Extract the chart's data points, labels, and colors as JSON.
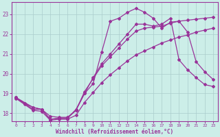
{
  "xlabel": "Windchill (Refroidissement éolien,°C)",
  "background_color": "#cceee8",
  "grid_color": "#aacccc",
  "line_color": "#993399",
  "xlim": [
    -0.5,
    23.5
  ],
  "ylim": [
    17.6,
    23.6
  ],
  "yticks": [
    18,
    19,
    20,
    21,
    22,
    23
  ],
  "xticks": [
    0,
    1,
    2,
    3,
    4,
    5,
    6,
    7,
    8,
    9,
    10,
    11,
    12,
    13,
    14,
    15,
    16,
    17,
    18,
    19,
    20,
    21,
    22,
    23
  ],
  "line1_x": [
    0,
    1,
    2,
    3,
    4,
    5,
    6,
    7,
    8,
    9,
    10,
    11,
    12,
    13,
    14,
    15,
    16,
    17,
    18,
    19,
    20,
    21,
    22,
    23
  ],
  "line1": [
    18.8,
    18.5,
    18.3,
    18.2,
    17.7,
    17.75,
    17.75,
    18.15,
    19.0,
    19.5,
    21.1,
    22.65,
    22.8,
    23.1,
    23.3,
    23.1,
    22.8,
    22.3,
    22.6,
    22.65,
    22.1,
    20.6,
    20.1,
    19.7
  ],
  "line2_x": [
    0,
    1,
    2,
    3,
    4,
    5,
    6,
    7,
    8,
    9,
    10,
    11,
    12,
    13,
    14,
    15,
    16,
    17,
    18,
    19,
    20,
    21,
    22,
    23
  ],
  "line2": [
    18.8,
    18.5,
    18.2,
    18.2,
    17.7,
    17.75,
    17.75,
    18.2,
    19.0,
    19.8,
    20.5,
    21.0,
    21.5,
    22.0,
    22.5,
    22.5,
    22.4,
    22.5,
    22.8,
    20.7,
    20.2,
    19.8,
    19.45,
    19.35
  ],
  "line3_x": [
    0,
    2,
    3,
    4,
    5,
    6,
    7,
    8,
    9,
    10,
    11,
    12,
    13,
    14,
    15,
    16,
    17,
    18,
    19,
    20,
    21,
    22,
    23
  ],
  "line3": [
    18.8,
    18.3,
    18.2,
    17.85,
    17.8,
    17.8,
    18.15,
    19.1,
    19.75,
    20.4,
    20.85,
    21.3,
    21.75,
    22.15,
    22.3,
    22.35,
    22.4,
    22.55,
    22.65,
    22.7,
    22.75,
    22.8,
    22.85
  ],
  "line4_x": [
    0,
    1,
    2,
    3,
    4,
    5,
    6,
    7,
    8,
    9,
    10,
    11,
    12,
    13,
    14,
    15,
    16,
    17,
    18,
    19,
    20,
    21,
    22,
    23
  ],
  "line4": [
    18.75,
    18.45,
    18.15,
    18.1,
    17.65,
    17.7,
    17.7,
    17.9,
    18.55,
    19.05,
    19.55,
    19.95,
    20.3,
    20.65,
    20.95,
    21.15,
    21.35,
    21.55,
    21.7,
    21.85,
    21.95,
    22.1,
    22.2,
    22.3
  ]
}
